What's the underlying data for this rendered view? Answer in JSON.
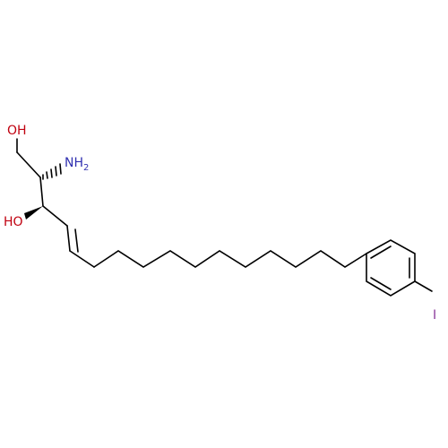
{
  "molecule": {
    "atoms": {
      "oh_top": {
        "text": "OH",
        "color": "#c0000f"
      },
      "nh2": {
        "text": "NH",
        "sub": "2",
        "color": "#3030b0"
      },
      "oh_left": {
        "text": "HO",
        "color": "#c0000f"
      },
      "iodine": {
        "text": "I",
        "color": "#8a3a9a"
      }
    }
  }
}
